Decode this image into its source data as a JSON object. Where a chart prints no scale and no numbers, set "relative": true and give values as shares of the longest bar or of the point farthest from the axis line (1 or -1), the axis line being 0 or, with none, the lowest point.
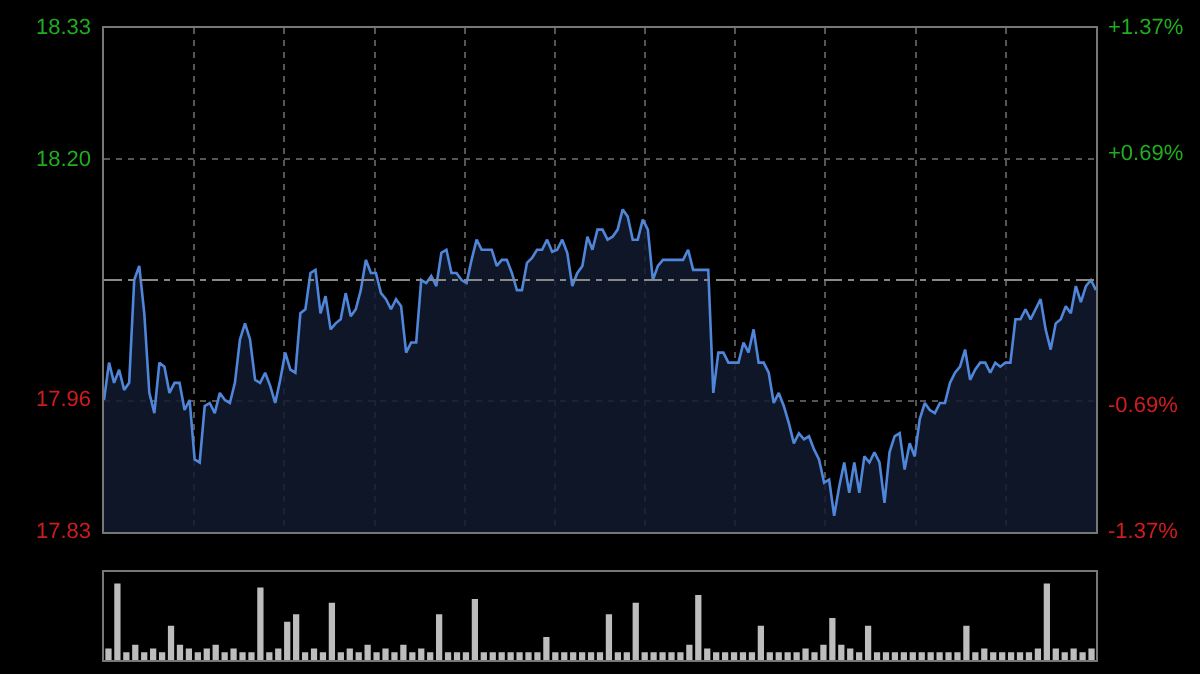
{
  "chart_data": [
    {
      "type": "area",
      "categories": [
        null,
        null,
        null,
        null,
        null,
        null,
        null,
        null,
        null,
        null,
        null,
        null,
        null,
        null,
        null,
        null,
        null,
        null,
        null,
        null,
        null,
        null,
        null,
        null,
        null,
        null,
        null,
        null,
        null,
        null,
        null,
        null,
        null,
        null,
        null,
        null,
        null,
        null,
        null,
        null,
        null,
        null,
        null,
        null,
        null,
        null,
        null,
        null,
        null,
        null,
        null,
        null,
        null,
        null,
        null,
        null,
        null,
        null,
        null,
        null,
        null,
        null,
        null,
        null,
        null,
        null,
        null,
        null,
        null,
        null,
        null,
        null,
        null,
        null,
        null,
        null,
        null,
        null,
        null,
        null,
        null,
        null,
        null,
        null,
        null,
        null,
        null,
        null,
        null,
        null,
        null,
        null,
        null,
        null,
        null,
        null,
        null,
        null,
        null,
        null,
        null,
        null,
        null,
        null,
        null,
        null,
        null,
        null,
        null,
        null,
        null,
        null,
        null,
        null,
        null,
        null,
        null,
        null,
        null,
        null,
        null,
        null,
        null,
        null,
        null,
        null,
        null,
        null,
        null,
        null,
        null,
        null,
        null,
        null,
        null,
        null,
        null,
        null,
        null,
        null,
        null,
        null,
        null,
        null,
        null,
        null,
        null,
        null,
        null,
        null,
        null,
        null,
        null,
        null,
        null,
        null,
        null,
        null,
        null,
        null,
        null,
        null,
        null,
        null,
        null,
        null,
        null,
        null,
        null,
        null,
        null,
        null,
        null,
        null,
        null,
        null,
        null,
        null,
        null,
        null,
        null,
        null,
        null,
        null,
        null,
        null,
        null,
        null,
        null,
        null,
        null,
        null,
        null,
        null,
        null,
        null,
        null,
        null
      ],
      "ylim": [
        17.83,
        18.33
      ],
      "yticks": [
        {
          "value": 18.33,
          "label": "18.33"
        },
        {
          "value": 18.2,
          "label": "18.20"
        },
        {
          "value": 17.96,
          "label": "17.96"
        },
        {
          "value": 17.83,
          "label": "17.83"
        }
      ],
      "y2lim": [
        -1.37,
        1.37
      ],
      "y2ticks": [
        {
          "value": 1.37,
          "label": "+1.37%"
        },
        {
          "value": 0.69,
          "label": "+0.69%"
        },
        {
          "value": -0.69,
          "label": "-0.69%"
        },
        {
          "value": -1.37,
          "label": "-1.37%"
        }
      ],
      "tick_labels": "y",
      "grid": true,
      "legend": false,
      "ref_lines": [
        {
          "axis": "y",
          "value": 18.08,
          "line_style": "dashed",
          "color": "#888888"
        }
      ],
      "series": [
        {
          "color": "#4f86d9",
          "values": [
            17.961,
            17.998,
            17.978,
            17.991,
            17.971,
            17.978,
            18.08,
            18.094,
            18.047,
            17.968,
            17.948,
            17.998,
            17.994,
            17.968,
            17.978,
            17.978,
            17.951,
            17.961,
            17.902,
            17.899,
            17.955,
            17.958,
            17.948,
            17.968,
            17.961,
            17.958,
            17.978,
            18.021,
            18.037,
            18.021,
            17.981,
            17.978,
            17.988,
            17.975,
            17.958,
            17.981,
            18.008,
            17.991,
            17.988,
            18.047,
            18.051,
            18.087,
            18.09,
            18.047,
            18.064,
            18.031,
            18.037,
            18.041,
            18.067,
            18.044,
            18.051,
            18.07,
            18.1,
            18.087,
            18.087,
            18.067,
            18.061,
            18.051,
            18.061,
            18.054,
            18.008,
            18.018,
            18.018,
            18.08,
            18.077,
            18.084,
            18.074,
            18.107,
            18.11,
            18.087,
            18.087,
            18.08,
            18.077,
            18.1,
            18.12,
            18.11,
            18.11,
            18.11,
            18.094,
            18.1,
            18.1,
            18.087,
            18.07,
            18.07,
            18.097,
            18.102,
            18.11,
            18.11,
            18.12,
            18.108,
            18.11,
            18.12,
            18.107,
            18.074,
            18.087,
            18.094,
            18.123,
            18.11,
            18.13,
            18.13,
            18.12,
            18.123,
            18.13,
            18.15,
            18.143,
            18.12,
            18.12,
            18.14,
            18.13,
            18.08,
            18.094,
            18.1,
            18.1,
            18.1,
            18.1,
            18.1,
            18.11,
            18.09,
            18.09,
            18.09,
            18.09,
            17.968,
            18.008,
            18.008,
            17.998,
            17.998,
            17.998,
            18.018,
            18.008,
            18.031,
            17.998,
            17.998,
            17.988,
            17.958,
            17.968,
            17.955,
            17.938,
            17.918,
            17.928,
            17.922,
            17.925,
            17.912,
            17.902,
            17.879,
            17.882,
            17.846,
            17.875,
            17.899,
            17.869,
            17.899,
            17.869,
            17.905,
            17.899,
            17.909,
            17.899,
            17.859,
            17.909,
            17.925,
            17.928,
            17.892,
            17.918,
            17.905,
            17.942,
            17.958,
            17.951,
            17.948,
            17.958,
            17.958,
            17.978,
            17.988,
            17.994,
            18.011,
            17.981,
            17.991,
            17.998,
            17.998,
            17.988,
            17.998,
            17.994,
            17.998,
            17.998,
            18.041,
            18.041,
            18.051,
            18.041,
            18.051,
            18.061,
            18.031,
            18.011,
            18.037,
            18.041,
            18.054,
            18.047,
            18.074,
            18.058,
            18.074,
            18.08,
            18.07
          ]
        }
      ]
    },
    {
      "type": "bar",
      "relative": true,
      "color": "#bdbdbd",
      "categories": [
        null,
        null,
        null,
        null,
        null,
        null,
        null,
        null,
        null,
        null,
        null,
        null,
        null,
        null,
        null,
        null,
        null,
        null,
        null,
        null,
        null,
        null,
        null,
        null,
        null,
        null,
        null,
        null,
        null,
        null,
        null,
        null,
        null,
        null,
        null,
        null,
        null,
        null,
        null,
        null,
        null,
        null,
        null,
        null,
        null,
        null,
        null,
        null,
        null,
        null,
        null,
        null,
        null,
        null,
        null,
        null,
        null,
        null,
        null,
        null,
        null,
        null,
        null,
        null,
        null,
        null,
        null,
        null,
        null,
        null,
        null,
        null,
        null,
        null,
        null,
        null,
        null,
        null,
        null,
        null,
        null,
        null,
        null,
        null,
        null,
        null,
        null,
        null,
        null,
        null,
        null,
        null,
        null,
        null,
        null,
        null,
        null,
        null,
        null,
        null,
        null,
        null,
        null,
        null,
        null,
        null,
        null,
        null,
        null,
        null,
        null
      ],
      "values": [
        0.15,
        1.0,
        0.1,
        0.2,
        0.1,
        0.15,
        0.1,
        0.45,
        0.2,
        0.15,
        0.1,
        0.15,
        0.2,
        0.1,
        0.15,
        0.1,
        0.1,
        0.95,
        0.1,
        0.15,
        0.5,
        0.6,
        0.1,
        0.15,
        0.1,
        0.75,
        0.1,
        0.15,
        0.1,
        0.2,
        0.1,
        0.15,
        0.1,
        0.2,
        0.1,
        0.15,
        0.1,
        0.6,
        0.1,
        0.1,
        0.1,
        0.8,
        0.1,
        0.1,
        0.1,
        0.1,
        0.1,
        0.1,
        0.1,
        0.3,
        0.1,
        0.1,
        0.1,
        0.1,
        0.1,
        0.1,
        0.6,
        0.1,
        0.1,
        0.75,
        0.1,
        0.1,
        0.1,
        0.1,
        0.1,
        0.2,
        0.85,
        0.15,
        0.1,
        0.1,
        0.1,
        0.1,
        0.1,
        0.45,
        0.1,
        0.1,
        0.1,
        0.1,
        0.15,
        0.1,
        0.2,
        0.55,
        0.2,
        0.15,
        0.1,
        0.45,
        0.1,
        0.1,
        0.1,
        0.1,
        0.1,
        0.1,
        0.1,
        0.1,
        0.1,
        0.1,
        0.45,
        0.1,
        0.15,
        0.1,
        0.1,
        0.1,
        0.1,
        0.1,
        0.15,
        1.0,
        0.15,
        0.1,
        0.15,
        0.1,
        0.15
      ]
    }
  ]
}
